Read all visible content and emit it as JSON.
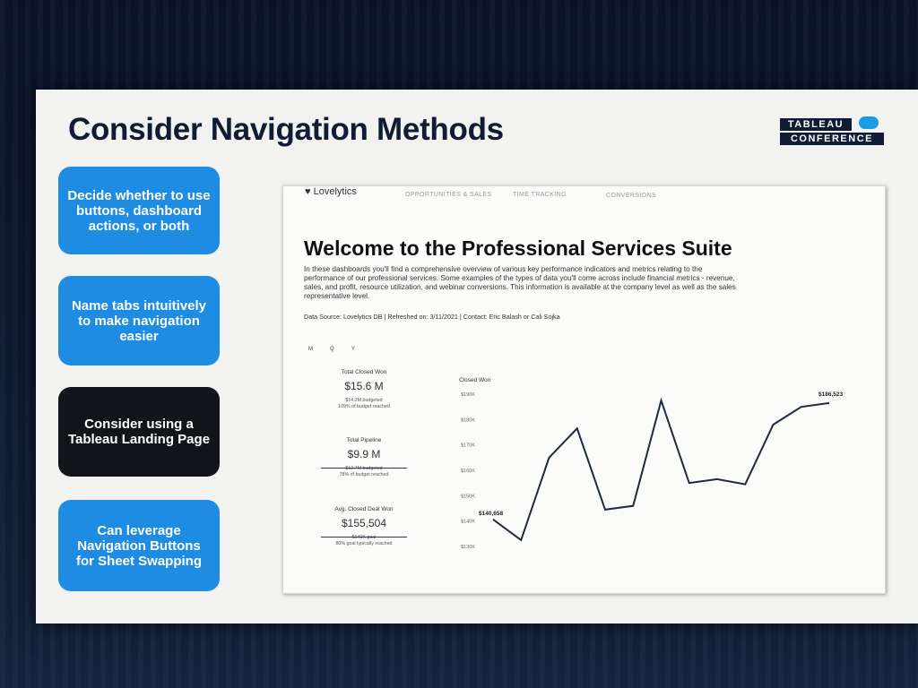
{
  "slide": {
    "title": "Consider Navigation Methods",
    "logo_line1": "TABLEAU",
    "logo_line2": "CONFERENCE",
    "cards": [
      {
        "text": "Decide whether to use buttons, dashboard actions, or both",
        "style": "blue"
      },
      {
        "text": "Name tabs intuitively to make navigation easier",
        "style": "blue"
      },
      {
        "text": "Consider using a Tableau Landing Page",
        "style": "dark"
      },
      {
        "text": "Can leverage Navigation Buttons for Sheet Swapping",
        "style": "blue"
      }
    ]
  },
  "dashboard": {
    "brand": "Lovelytics",
    "nav": [
      "OPPORTUNITIES & SALES",
      "TIME TRACKING",
      "CONVERSIONS"
    ],
    "heading": "Welcome to the Professional Services Suite",
    "description": "In these dashboards you'll find a comprehensive overview of various key performance indicators and metrics relating to the performance of our professional services. Some examples of the types of data you'll come across include financial metrics - revenue, sales, and profit, resource utilization, and webinar conversions. This information is available at the company level as well as the sales representative level.",
    "source": "Data Source: Lovelytics DB   |   Refreshed on: 3/11/2021   |   Contact: Eric Balash or Cali Sojka",
    "period_toggle": [
      "M",
      "Q",
      "Y"
    ],
    "kpis": [
      {
        "label": "Total Closed Won",
        "value": "$15.6 M",
        "sub1": "$14.2M budgeted",
        "sub2": "109% of budget reached"
      },
      {
        "label": "Total Pipeline",
        "value": "$9.9 M",
        "sub1": "$12.7M budgeted",
        "sub2": "78% of budget reached"
      },
      {
        "label": "Avg. Closed Deal Won",
        "value": "$155,504",
        "sub1": "$140K goal",
        "sub2": "80% goal typically reached"
      }
    ]
  },
  "chart_data": {
    "type": "line",
    "title": "Closed Won",
    "ylim": [
      130000,
      190000
    ],
    "yticks": [
      "$190K",
      "$180K",
      "$170K",
      "$160K",
      "$150K",
      "$140K",
      "$130K"
    ],
    "values": [
      140658,
      132500,
      165000,
      176500,
      144500,
      146000,
      187500,
      155000,
      156500,
      154500,
      178000,
      185000,
      186523
    ],
    "first_label": "$140,658",
    "last_label": "$186,523",
    "line_color": "#1f2a3c"
  }
}
